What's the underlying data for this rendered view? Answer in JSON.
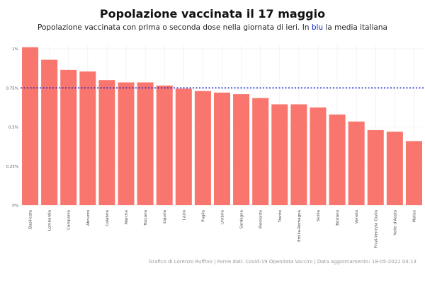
{
  "chart_data": {
    "type": "bar",
    "title": "Popolazione vaccinata il 17 maggio",
    "subtitle_pre": "Popolazione vaccinata con prima o seconda dose nella giornata di ieri. In ",
    "subtitle_blue": "blu",
    "subtitle_post": " la media italiana",
    "xlabel": "",
    "ylabel": "",
    "ylim": [
      0,
      1.0
    ],
    "yticks": [
      0,
      0.25,
      0.5,
      0.75,
      1.0
    ],
    "ytick_labels": [
      "0%",
      "0.25%",
      "0.5%",
      "0.75%",
      "1%"
    ],
    "categories": [
      "Basilicata",
      "Lombardia",
      "Campania",
      "Abruzzo",
      "Calabria",
      "Marche",
      "Toscana",
      "Liguria",
      "Lazio",
      "Puglia",
      "Umbria",
      "Sardegna",
      "Piemonte",
      "Trento",
      "Emilia-Romagna",
      "Sicilia",
      "Bolzano",
      "Veneto",
      "Friuli-Venezia Giulia",
      "Valle d'Aosta",
      "Molise"
    ],
    "values": [
      1.01,
      0.93,
      0.865,
      0.855,
      0.8,
      0.785,
      0.785,
      0.765,
      0.745,
      0.73,
      0.72,
      0.71,
      0.685,
      0.645,
      0.645,
      0.625,
      0.58,
      0.535,
      0.48,
      0.47,
      0.41
    ],
    "mean_line": 0.75,
    "bar_color": "#f8766d",
    "mean_color": "#1020d0",
    "grid": true
  },
  "caption": "Grafico di Lorenzo Ruffino | Fonte dati: Covid-19 Opendata Vaccini | Data aggiornamento: 18-05-2021 04:13"
}
